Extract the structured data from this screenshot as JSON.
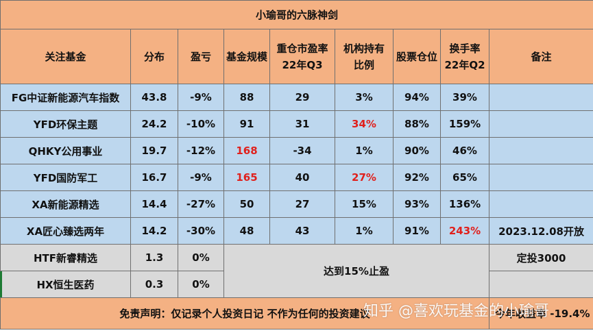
{
  "title": "小瑜哥的六脉神剑",
  "headers": {
    "fund": "关注基金",
    "dist": "分布",
    "pnl": "盈亏",
    "size": "基金规模",
    "pe_line1": "重仓市盈率",
    "pe_line2": "22年Q3",
    "inst_line1": "机构持有",
    "inst_line2": "比例",
    "stock_pos": "股票仓位",
    "turn_line1": "换手率",
    "turn_line2": "22年Q2",
    "note": "备注"
  },
  "rows": [
    {
      "fund": "FG中证新能源汽车指数",
      "dist": "43.8",
      "pnl": "-9%",
      "size": "88",
      "pe": "29",
      "inst": "3%",
      "stock_pos": "94%",
      "turnover": "39%",
      "note": ""
    },
    {
      "fund": "YFD环保主题",
      "dist": "24.2",
      "pnl": "-10%",
      "size": "91",
      "pe": "31",
      "inst": "34%",
      "stock_pos": "88%",
      "turnover": "159%",
      "note": ""
    },
    {
      "fund": "QHKY公用事业",
      "dist": "19.7",
      "pnl": "-12%",
      "size": "168",
      "pe": "-34",
      "inst": "1%",
      "stock_pos": "90%",
      "turnover": "46%",
      "note": ""
    },
    {
      "fund": "YFD国防军工",
      "dist": "16.7",
      "pnl": "-9%",
      "size": "165",
      "pe": "40",
      "inst": "27%",
      "stock_pos": "92%",
      "turnover": "65%",
      "note": ""
    },
    {
      "fund": "XA新能源精选",
      "dist": "14.4",
      "pnl": "-27%",
      "size": "50",
      "pe": "27",
      "inst": "15%",
      "stock_pos": "93%",
      "turnover": "136%",
      "note": ""
    },
    {
      "fund": "XA匠心臻选两年",
      "dist": "14.2",
      "pnl": "-30%",
      "size": "48",
      "pe": "43",
      "inst": "1%",
      "stock_pos": "91%",
      "turnover": "243%",
      "note": "2023.12.08开放"
    }
  ],
  "gray_rows": [
    {
      "fund": "HTF新睿精选",
      "dist": "1.3",
      "pnl": "0%",
      "note": "定投3000"
    },
    {
      "fund": "HX恒生医药",
      "dist": "0.3",
      "pnl": "0%",
      "note": ""
    }
  ],
  "merged_note": "达到15%止盈",
  "disclaimer": "免责声明：仅记录个人投资日记 不作为任何的投资建议",
  "yield_text": "今年收益率 -19.4%",
  "watermark": "知乎 @喜欢玩基金的小瑜哥",
  "colors": {
    "header": "#f4b183",
    "data": "#bdd7ee",
    "gray": "#d9d9d9",
    "highlight": "#e0201c"
  }
}
